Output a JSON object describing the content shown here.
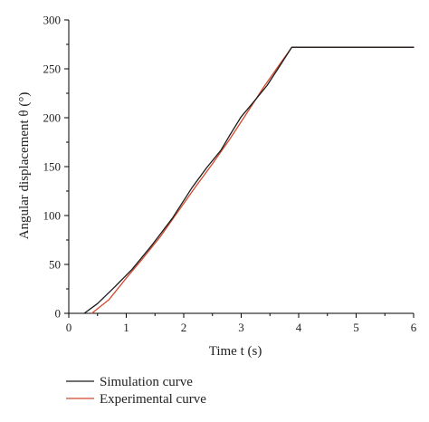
{
  "chart_data": {
    "type": "line",
    "xlabel": "Time t (s)",
    "ylabel": "Angular displacement θ (°)",
    "xlim": [
      0,
      6
    ],
    "ylim": [
      0,
      300
    ],
    "xticks": [
      "0",
      "1",
      "2",
      "3",
      "4",
      "5",
      "6"
    ],
    "yticks": [
      "0",
      "50",
      "100",
      "150",
      "200",
      "250",
      "300"
    ],
    "grid": false,
    "legend_position": "bottom-left",
    "series": [
      {
        "name": "Simulation curve",
        "color": "#1a1a1a",
        "x": [
          0.27,
          0.5,
          0.8,
          1.1,
          1.45,
          1.8,
          2.15,
          2.4,
          2.65,
          2.8,
          3.0,
          3.2,
          3.45,
          3.65,
          3.88,
          6.0
        ],
        "y": [
          0,
          10,
          27,
          45,
          70,
          97,
          129,
          149,
          167,
          182,
          201,
          215,
          233,
          251,
          272,
          272
        ]
      },
      {
        "name": "Experimental curve",
        "color": "#d4482c",
        "x": [
          0.4,
          0.7,
          1.0,
          1.3,
          1.6,
          1.9,
          2.2,
          2.5,
          2.8,
          3.1,
          3.4,
          3.65,
          3.88,
          6.0
        ],
        "y": [
          0,
          14,
          36,
          57,
          79,
          104,
          129,
          153,
          178,
          205,
          232,
          253,
          272,
          272
        ]
      }
    ]
  }
}
